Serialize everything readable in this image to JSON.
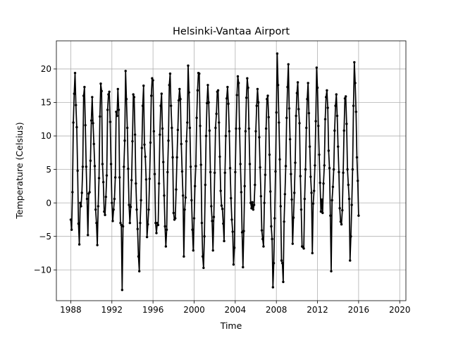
{
  "chart_data": {
    "type": "line",
    "title": "Helsinki-Vantaa Airport",
    "xlabel": "Time",
    "ylabel": "Temperature (Celsius)",
    "x_unit": "year",
    "xlim": [
      1986.6,
      2020.6
    ],
    "ylim": [
      -14.6,
      24.2
    ],
    "x_ticks": [
      1988,
      1992,
      1996,
      2000,
      2004,
      2008,
      2012,
      2016,
      2020
    ],
    "x_tick_labels": [
      "1988",
      "1992",
      "1996",
      "2000",
      "2004",
      "2008",
      "2012",
      "2016",
      "2020"
    ],
    "y_ticks": [
      -10,
      -5,
      0,
      5,
      10,
      15,
      20
    ],
    "y_tick_labels": [
      "−10",
      "−5",
      "0",
      "5",
      "10",
      "15",
      "20"
    ],
    "grid": true,
    "legend": "none",
    "line_color": "#000000",
    "marker": "dot",
    "series": [
      {
        "x_start": 1988.0,
        "x_step": 0.0833333,
        "values": [
          -2.5,
          -4.0,
          1.6,
          12.0,
          16.3,
          19.4,
          14.6,
          11.3,
          4.8,
          -3.1,
          -6.2,
          0.0,
          -0.5,
          1.5,
          5.4,
          16.0,
          17.3,
          11.6,
          5.4,
          0.6,
          -4.8,
          1.4,
          1.6,
          6.3,
          12.3,
          15.8,
          11.9,
          8.8,
          5.5,
          -1.0,
          -3.0,
          -6.3,
          -0.5,
          3.7,
          12.9,
          17.8,
          16.7,
          5.8,
          3.1,
          -1.3,
          -1.8,
          0.9,
          4.1,
          13.9,
          16.2,
          16.6,
          12.1,
          5.8,
          0.0,
          -2.7,
          -1.0,
          0.6,
          3.8,
          13.6,
          13.0,
          17.0,
          13.9,
          3.8,
          -3.0,
          -3.3,
          -13.0,
          -3.5,
          5.4,
          9.3,
          19.7,
          15.5,
          11.2,
          5.1,
          -0.3,
          -3.0,
          -0.6,
          3.4,
          9.2,
          16.2,
          15.8,
          10.2,
          2.9,
          -1.0,
          -3.9,
          -8.0,
          -10.2,
          -3.0,
          0.4,
          8.2,
          14.5,
          17.5,
          8.7,
          6.9,
          3.5,
          -5.1,
          -3.2,
          -1.0,
          3.6,
          9.0,
          16.0,
          18.6,
          18.3,
          10.7,
          4.3,
          -3.0,
          -4.5,
          -3.0,
          -3.3,
          2.9,
          10.2,
          14.5,
          16.3,
          11.1,
          6.1,
          1.1,
          -3.5,
          -6.5,
          -4.0,
          4.6,
          9.3,
          17.6,
          19.3,
          14.5,
          11.2,
          6.8,
          -1.5,
          -2.5,
          -2.3,
          2.0,
          6.8,
          10.9,
          15.3,
          17.0,
          15.5,
          8.8,
          4.7,
          1.1,
          -8.0,
          -1.0,
          0.8,
          9.2,
          12.0,
          20.5,
          16.5,
          11.2,
          5.4,
          0.4,
          -4.0,
          -7.1,
          -2.3,
          2.5,
          5.5,
          12.7,
          16.8,
          19.4,
          19.3,
          11.5,
          5.7,
          -3.0,
          -8.0,
          -9.7,
          -5.0,
          2.7,
          10.0,
          14.9,
          17.6,
          15.0,
          10.8,
          4.6,
          -0.5,
          -2.7,
          -7.1,
          -2.1,
          4.5,
          11.2,
          13.3,
          16.6,
          16.8,
          12.0,
          6.9,
          1.8,
          -0.4,
          -0.9,
          -3.1,
          -5.7,
          4.5,
          10.0,
          15.6,
          17.3,
          14.8,
          10.7,
          5.2,
          0.7,
          -2.5,
          -4.3,
          -9.2,
          -6.7,
          4.6,
          11.1,
          16.1,
          18.9,
          17.9,
          11.1,
          5.8,
          1.6,
          -4.4,
          -9.6,
          -4.2,
          2.5,
          10.7,
          15.7,
          18.6,
          17.2,
          11.1,
          5.8,
          0.0,
          -0.8,
          0.1,
          -1.0,
          -0.3,
          2.7,
          10.7,
          14.5,
          17.0,
          15.0,
          9.8,
          5.3,
          1.0,
          -4.1,
          -5.4,
          -6.5,
          0.0,
          4.2,
          11.1,
          15.5,
          16.0,
          12.8,
          7.2,
          1.7,
          -3.5,
          -5.4,
          -12.6,
          -9.0,
          -2.3,
          4.7,
          13.5,
          22.3,
          17.6,
          12.0,
          6.5,
          -0.5,
          -8.6,
          -9.0,
          -11.8,
          -2.8,
          1.3,
          5.5,
          12.7,
          17.3,
          20.7,
          14.1,
          9.5,
          4.3,
          0.5,
          -6.1,
          -2.2,
          1.5,
          6.0,
          13.0,
          16.4,
          18.0,
          14.0,
          11.9,
          4.0,
          -1.0,
          -6.5,
          -6.6,
          -6.8,
          0.6,
          5.0,
          11.2,
          15.5,
          17.9,
          13.4,
          8.4,
          3.9,
          1.5,
          -7.5,
          -0.1,
          1.8,
          5.6,
          12.2,
          20.2,
          17.2,
          11.5,
          7.2,
          3.0,
          -1.3,
          0.5,
          -1.5,
          2.9,
          5.6,
          12.5,
          15.8,
          16.8,
          14.2,
          7.8,
          5.2,
          -1.9,
          -10.2,
          0.4,
          2.4,
          5.0,
          10.8,
          14.5,
          16.2,
          13.0,
          8.4,
          4.6,
          -0.8,
          -2.8,
          -3.2,
          -1.1,
          4.5,
          10.8,
          15.6,
          15.9,
          11.8,
          5.0,
          2.7,
          0.6,
          -8.6,
          -5.0,
          -0.3,
          5.0,
          14.5,
          21.0,
          17.9,
          13.6,
          6.8,
          3.3,
          -1.9
        ]
      }
    ]
  }
}
